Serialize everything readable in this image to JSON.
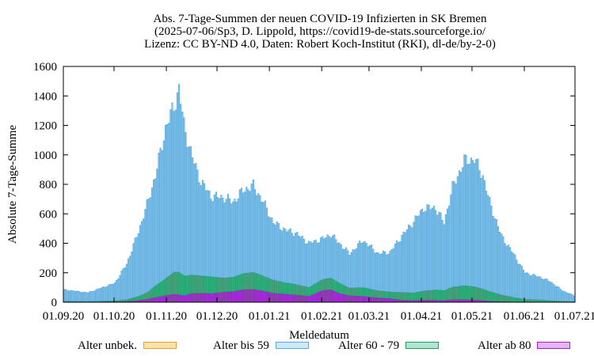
{
  "chart_data": {
    "type": "bar",
    "stacked": true,
    "title": [
      "Abs. 7-Tage-Summen der neuen COVID-19 Infizierten in SK Bremen",
      "(2025-07-06/Sp3, D. Lippold, https://covid19-de-stats.sourceforge.io/",
      "Lizenz: CC BY-ND 4.0, Daten: Robert Koch-Institut (RKI), dl-de/by-2-0)"
    ],
    "xlabel": "Meldedatum",
    "ylabel": "Absolute 7-Tage-Summe",
    "ylim": [
      0,
      1600
    ],
    "yticks": [
      0,
      200,
      400,
      600,
      800,
      1000,
      1200,
      1400,
      1600
    ],
    "xticks": [
      "01.09.20",
      "01.10.20",
      "01.11.20",
      "01.12.20",
      "01.01.21",
      "01.02.21",
      "01.03.21",
      "01.04.21",
      "01.05.21",
      "01.06.21",
      "01.07.21"
    ],
    "x_date_range": [
      "2020-09-01",
      "2021-07-01"
    ],
    "legend_position": "bottom",
    "series": [
      {
        "name": "Alter unbek.",
        "color": "#fff0c0",
        "edge": "#e8a030"
      },
      {
        "name": "Alter bis 59",
        "color": "#7ec4ee",
        "edge": "#3a8fc8",
        "legend_color": "#cde8f8"
      },
      {
        "name": "Alter 60 - 79",
        "color": "#2cb07a",
        "edge": "#1f7f57",
        "legend_color": "#b0e6d0"
      },
      {
        "name": "Alter ab 80",
        "color": "#a52ad8",
        "edge": "#6b1890",
        "legend_color": "#e4b4f4"
      }
    ],
    "anchors": {
      "dates": [
        "2020-09-01",
        "2020-09-15",
        "2020-10-01",
        "2020-10-08",
        "2020-10-15",
        "2020-10-20",
        "2020-10-25",
        "2020-10-31",
        "2020-11-05",
        "2020-11-08",
        "2020-11-11",
        "2020-11-16",
        "2020-11-21",
        "2020-11-27",
        "2020-12-05",
        "2020-12-10",
        "2020-12-16",
        "2020-12-22",
        "2020-12-27",
        "2021-01-03",
        "2021-01-10",
        "2021-01-16",
        "2021-01-24",
        "2021-02-01",
        "2021-02-06",
        "2021-02-11",
        "2021-02-17",
        "2021-02-25",
        "2021-03-06",
        "2021-03-13",
        "2021-03-20",
        "2021-03-27",
        "2021-04-02",
        "2021-04-09",
        "2021-04-14",
        "2021-04-19",
        "2021-04-26",
        "2021-05-02",
        "2021-05-07",
        "2021-05-11",
        "2021-05-18",
        "2021-05-25",
        "2021-06-01",
        "2021-06-10",
        "2021-06-16",
        "2021-06-23",
        "2021-07-01"
      ],
      "totals": [
        85,
        65,
        130,
        260,
        480,
        660,
        860,
        1180,
        1330,
        1450,
        1200,
        980,
        820,
        720,
        710,
        680,
        760,
        790,
        700,
        540,
        490,
        470,
        400,
        430,
        460,
        400,
        330,
        420,
        330,
        340,
        450,
        550,
        640,
        640,
        540,
        780,
        960,
        970,
        860,
        680,
        450,
        330,
        200,
        170,
        140,
        80,
        40
      ],
      "age60_79": [
        4,
        3,
        6,
        12,
        28,
        45,
        80,
        115,
        150,
        155,
        135,
        125,
        118,
        115,
        95,
        98,
        110,
        115,
        105,
        88,
        78,
        72,
        60,
        75,
        80,
        70,
        52,
        60,
        48,
        45,
        52,
        52,
        62,
        70,
        68,
        85,
        95,
        90,
        78,
        65,
        45,
        30,
        18,
        14,
        10,
        6,
        3
      ],
      "age80": [
        3,
        2,
        4,
        6,
        12,
        20,
        32,
        45,
        55,
        50,
        45,
        60,
        62,
        58,
        70,
        72,
        85,
        88,
        78,
        62,
        55,
        50,
        40,
        80,
        85,
        60,
        45,
        40,
        30,
        25,
        15,
        12,
        15,
        14,
        12,
        18,
        18,
        16,
        12,
        8,
        5,
        3,
        2,
        2,
        1,
        1,
        1
      ]
    }
  }
}
